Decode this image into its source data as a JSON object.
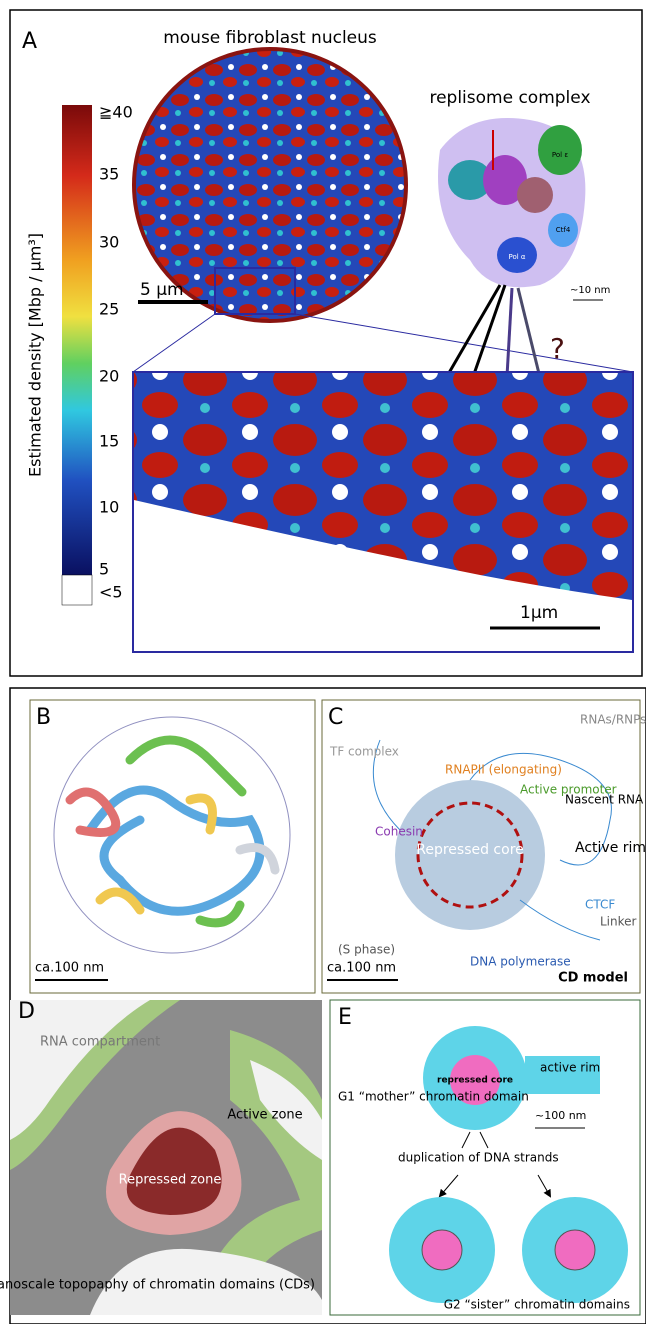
{
  "panel_a": {
    "label": "A",
    "nucleus_title": "mouse fibroblast nucleus",
    "replisome_title": "replisome complex",
    "colorbar_label": "Estimated density [Mbp / μm³]",
    "colorbar_ticks": [
      "≧40",
      "35",
      "30",
      "25",
      "20",
      "15",
      "10",
      "5",
      "<5"
    ],
    "nucleus_scale": "5 μm",
    "zoom_scale": "1μm",
    "replisome_scale": "~10 nm",
    "question": "?",
    "proteins": [
      "Pol ε",
      "Ctf4",
      "Pol α"
    ]
  },
  "panel_b": {
    "label": "B",
    "scale": "ca.100 nm"
  },
  "panel_c": {
    "label": "C",
    "annotations": [
      "RNAPII (elongating)",
      "RNAs/RNPs",
      "TF complex",
      "Active promoter",
      "Nascent RNA",
      "Cohesin",
      "Active rim",
      "Repressed core",
      "CTCF",
      "Linker",
      "(S phase)",
      "DNA polymerase"
    ],
    "scale": "ca.100 nm",
    "model": "CD model"
  },
  "panel_d": {
    "label": "D",
    "rna": "RNA compartment",
    "active": "Active zone",
    "repressed": "Repressed zone",
    "caption": "nanoscale topopaphy of chromatin domains (CDs)"
  },
  "panel_e": {
    "label": "E",
    "active_rim": "active rim",
    "repressed_core": "repressed core",
    "mother": "G1 “mother” chromatin domain",
    "scale": "~100 nm",
    "duplication": "duplication of DNA strands",
    "sisters": "G2 “sister” chromatin domains"
  }
}
